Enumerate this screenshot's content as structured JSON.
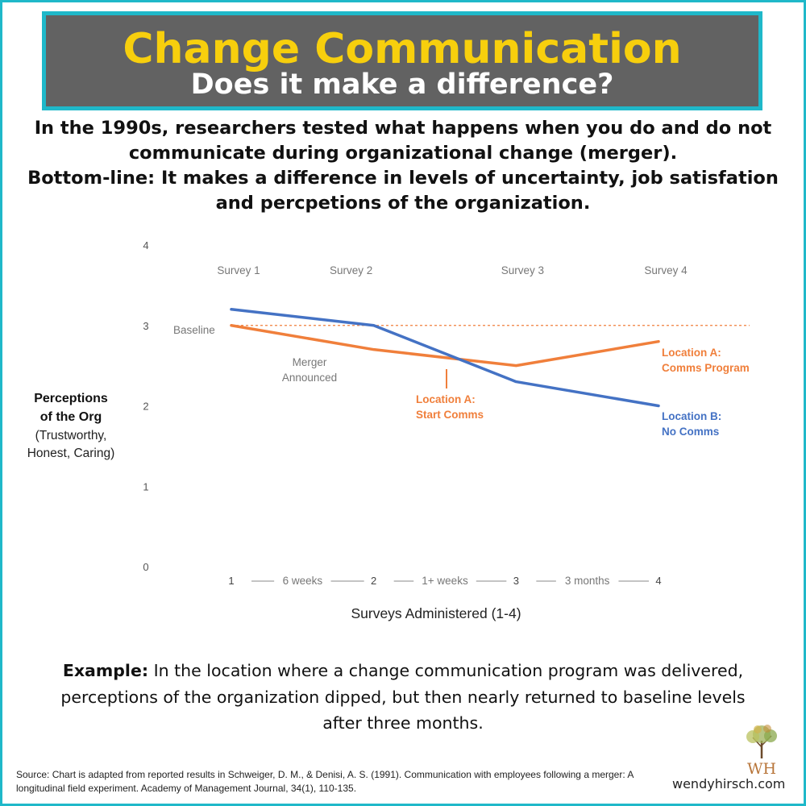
{
  "header": {
    "title": "Change Communication",
    "subtitle": "Does it make a difference?"
  },
  "intro": {
    "line1": "In the 1990s, researchers tested what happens when you do and do not communicate during organizational change (merger).",
    "line2": "Bottom-line: It makes a difference in levels of uncertainty, job satisfation and percpetions of the organization."
  },
  "chart_data": {
    "type": "line",
    "x": [
      1,
      2,
      3,
      4
    ],
    "series": [
      {
        "name": "Location A",
        "values": [
          3.0,
          2.7,
          2.5,
          2.8
        ],
        "color": "#f07f3b"
      },
      {
        "name": "Location B",
        "values": [
          3.2,
          3.0,
          2.3,
          2.0
        ],
        "color": "#4472c4"
      }
    ],
    "baseline": {
      "value": 3.0,
      "label": "Baseline",
      "color": "#f07f3b"
    },
    "ylim": [
      0,
      4
    ],
    "yticks": [
      "0",
      "1",
      "2",
      "3",
      "4"
    ],
    "xticks": [
      "1",
      "2",
      "3",
      "4"
    ],
    "interval_labels": [
      "6 weeks",
      "1+ weeks",
      "3 months"
    ],
    "survey_labels": [
      "Survey 1",
      "Survey 2",
      "Survey 3",
      "Survey 4"
    ],
    "xlabel": "Surveys Administered (1-4)",
    "ylabel": {
      "line1": "Perceptions",
      "line2": "of the Org",
      "line3": "(Trustworthy,",
      "line4": "Honest, Caring)"
    },
    "annotations": {
      "merger": [
        "Merger",
        "Announced"
      ],
      "start_comms": [
        "Location A:",
        "Start Comms"
      ],
      "comms_program": [
        "Location A:",
        "Comms Program"
      ],
      "no_comms": [
        "Location B:",
        "No Comms"
      ]
    }
  },
  "example": {
    "label": "Example:",
    "text": "In the location where a change communication program was delivered, perceptions of the organization dipped, but then nearly returned to baseline levels after three months."
  },
  "footer": {
    "source": "Source: Chart is adapted from reported results in Schweiger, D. M., & Denisi, A. S. (1991). Communication with employees following a merger: A longitudinal field experiment. Academy of Management Journal, 34(1), 110-135.",
    "website": "wendyhirsch.com",
    "logo_text": "WH"
  }
}
